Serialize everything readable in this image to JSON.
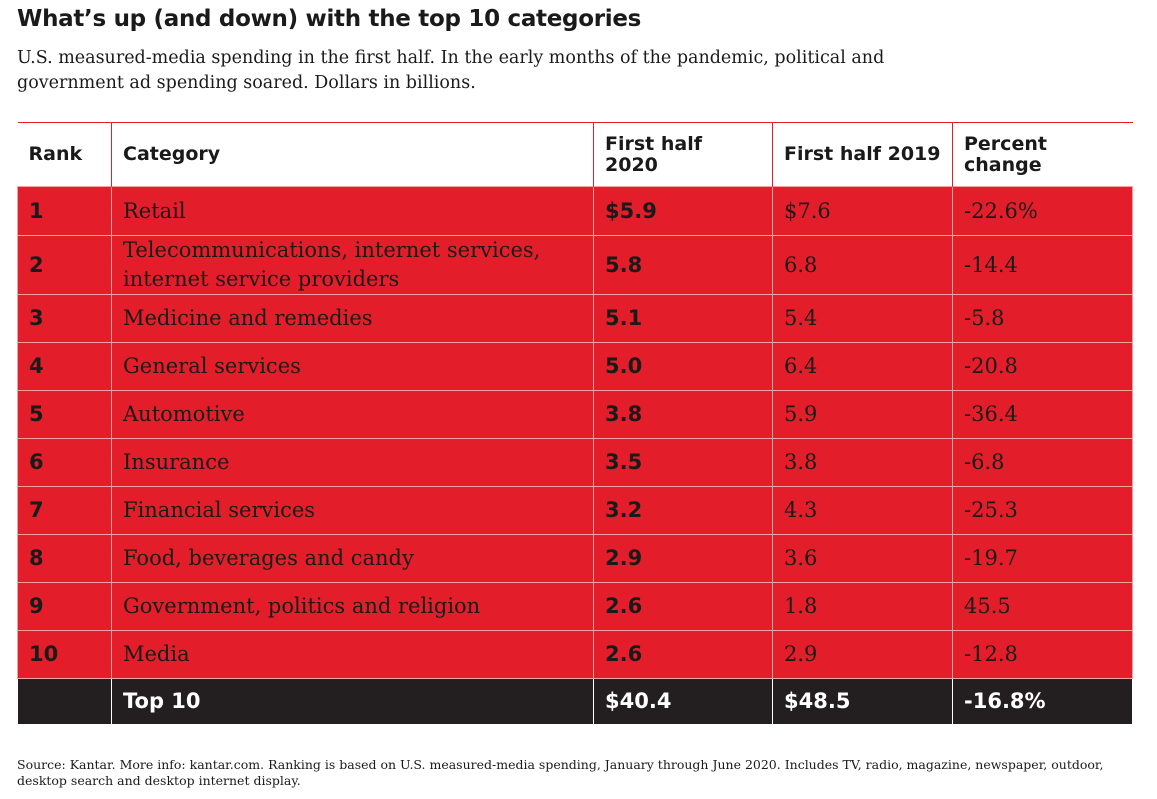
{
  "header": {
    "title": "What’s up (and down) with the top 10 categories",
    "subtitle": "U.S. measured-media spending in the first half. In the early months of the pandemic, political and government ad spending soared. Dollars in billions."
  },
  "table": {
    "columns": [
      "Rank",
      "Category",
      "First half 2020",
      "First half 2019",
      "Percent change"
    ],
    "rows": [
      [
        "1",
        "Retail",
        "$5.9",
        "$7.6",
        "-22.6%"
      ],
      [
        "2",
        "Telecommunications, internet services, internet service providers",
        "5.8",
        "6.8",
        "-14.4"
      ],
      [
        "3",
        "Medicine and remedies",
        "5.1",
        "5.4",
        "-5.8"
      ],
      [
        "4",
        "General services",
        "5.0",
        "6.4",
        "-20.8"
      ],
      [
        "5",
        "Automotive",
        "3.8",
        "5.9",
        "-36.4"
      ],
      [
        "6",
        "Insurance",
        "3.5",
        "3.8",
        "-6.8"
      ],
      [
        "7",
        "Financial services",
        "3.2",
        "4.3",
        "-25.3"
      ],
      [
        "8",
        "Food, beverages and candy",
        "2.9",
        "3.6",
        "-19.7"
      ],
      [
        "9",
        "Government, politics and religion",
        "2.6",
        "1.8",
        "45.5"
      ],
      [
        "10",
        "Media",
        "2.6",
        "2.9",
        "-12.8"
      ]
    ],
    "total": [
      "Top 10",
      "$40.4",
      "$48.5",
      "-16.8%"
    ]
  },
  "footer": {
    "source": "Source: Kantar. More info: kantar.com. Ranking is based on U.S. measured-media spending, January through June 2020. Includes TV, radio, magazine, newspaper, outdoor, desktop search and desktop internet display."
  }
}
